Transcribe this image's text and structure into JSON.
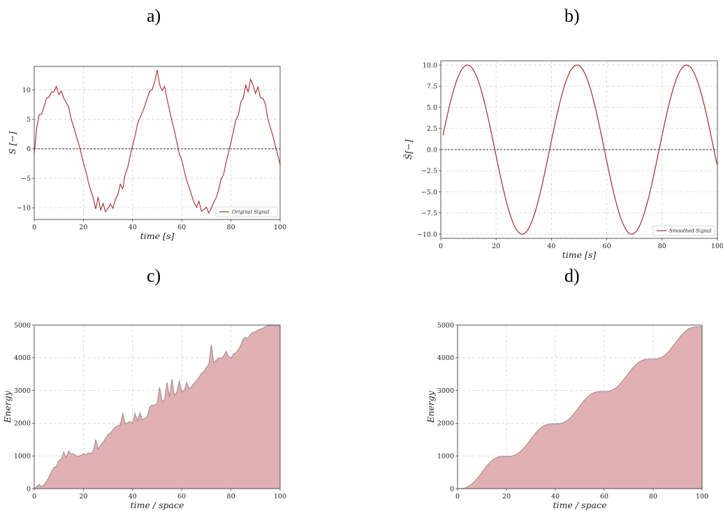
{
  "panel_labels": [
    "a)",
    "b)",
    "c)",
    "d)"
  ],
  "colors": {
    "line": "#a52a2a",
    "fill": "#e0b0b3",
    "fill_edge": "#9a8a8a",
    "grid": "#d4d4d4",
    "zero": "#333333"
  },
  "chart_data": [
    {
      "type": "line",
      "panel": "a)",
      "xlabel": "time [s]",
      "ylabel": "S [−]",
      "xlim": [
        0,
        100
      ],
      "ylim": [
        -12,
        14
      ],
      "xticks": [
        0,
        20,
        40,
        60,
        80,
        100
      ],
      "yticks": [
        -10,
        -5,
        0,
        5,
        10
      ],
      "ytick_labels": [
        "−10",
        "−5",
        "0",
        "5",
        "10"
      ],
      "legend": "top-right-lower",
      "legend_position": "lower right",
      "grid": true,
      "zero_line": true,
      "series": [
        {
          "name": "Original Signal",
          "x": [
            0,
            1,
            2,
            3,
            4,
            5,
            6,
            7,
            8,
            9,
            10,
            11,
            12,
            13,
            14,
            15,
            16,
            17,
            18,
            19,
            20,
            21,
            22,
            23,
            24,
            25,
            26,
            27,
            28,
            29,
            30,
            31,
            32,
            33,
            34,
            35,
            36,
            37,
            38,
            39,
            40,
            41,
            42,
            43,
            44,
            45,
            46,
            47,
            48,
            49,
            50,
            51,
            52,
            53,
            54,
            55,
            56,
            57,
            58,
            59,
            60,
            61,
            62,
            63,
            64,
            65,
            66,
            67,
            68,
            69,
            70,
            71,
            72,
            73,
            74,
            75,
            76,
            77,
            78,
            79,
            80,
            81,
            82,
            83,
            84,
            85,
            86,
            87,
            88,
            89,
            90,
            91,
            92,
            93,
            94,
            95,
            96,
            97,
            98,
            99,
            100
          ],
          "values": [
            -0.8,
            3.5,
            5.8,
            5.9,
            7.2,
            8.6,
            8.8,
            9.6,
            9.7,
            10.6,
            9.2,
            9.8,
            8.6,
            7.9,
            7.1,
            5.1,
            3.8,
            2.3,
            1.0,
            -0.6,
            -2.4,
            -3.8,
            -5.6,
            -7.1,
            -8.3,
            -10.2,
            -8.2,
            -10.4,
            -9.3,
            -10.7,
            -10.1,
            -9.4,
            -10.1,
            -8.6,
            -7.8,
            -6.0,
            -6.8,
            -4.3,
            -3.2,
            -1.2,
            0.6,
            2.2,
            4.2,
            5.3,
            6.2,
            7.3,
            8.7,
            9.8,
            10.1,
            11.4,
            13.4,
            10.9,
            9.9,
            10.6,
            8.5,
            6.6,
            4.8,
            3.1,
            1.1,
            -0.9,
            -1.9,
            -3.7,
            -5.4,
            -6.5,
            -7.9,
            -9.1,
            -9.9,
            -8.9,
            -10.6,
            -10.3,
            -9.9,
            -10.9,
            -10.1,
            -9.1,
            -8.3,
            -7.0,
            -5.1,
            -4.4,
            -2.3,
            -0.6,
            1.1,
            3.0,
            4.9,
            5.7,
            7.9,
            8.6,
            10.8,
            9.7,
            11.8,
            10.8,
            9.4,
            10.5,
            8.7,
            8.6,
            7.6,
            5.1,
            3.7,
            2.3,
            0.6,
            -1.0,
            -2.7
          ]
        }
      ]
    },
    {
      "type": "line",
      "panel": "b)",
      "xlabel": "time [s]",
      "ylabel": "S̄[−]",
      "xlim": [
        0,
        100
      ],
      "ylim": [
        -10.5,
        10.5
      ],
      "xticks": [
        0,
        20,
        40,
        60,
        80,
        100
      ],
      "yticks": [
        -10,
        -7.5,
        -5,
        -2.5,
        0,
        2.5,
        5,
        7.5,
        10
      ],
      "ytick_labels": [
        "−10.0",
        "−7.5",
        "−5.0",
        "−2.5",
        "0.0",
        "2.5",
        "5.0",
        "7.5",
        "10.0"
      ],
      "legend_position": "lower right",
      "grid": true,
      "zero_line": true,
      "series": [
        {
          "name": "Smoothed Signal",
          "function": "10*sin(2*pi*(t-0.8)/39.6)",
          "x_start": 0.8,
          "x_end": 100
        }
      ]
    },
    {
      "type": "area",
      "panel": "c)",
      "xlabel": "time / space",
      "ylabel": "Energy",
      "xlim": [
        0,
        100
      ],
      "ylim": [
        0,
        5000
      ],
      "xticks": [
        0,
        20,
        40,
        60,
        80,
        100
      ],
      "yticks": [
        0,
        1000,
        2000,
        3000,
        4000,
        5000
      ],
      "grid": true,
      "x": [
        0,
        1,
        2,
        3,
        4,
        5,
        6,
        7,
        8,
        9,
        10,
        11,
        12,
        13,
        14,
        15,
        16,
        17,
        18,
        19,
        20,
        21,
        22,
        23,
        24,
        25,
        26,
        27,
        28,
        29,
        30,
        31,
        32,
        33,
        34,
        35,
        36,
        37,
        38,
        39,
        40,
        41,
        42,
        43,
        44,
        45,
        46,
        47,
        48,
        49,
        50,
        51,
        52,
        53,
        54,
        55,
        56,
        57,
        58,
        59,
        60,
        61,
        62,
        63,
        64,
        65,
        66,
        67,
        68,
        69,
        70,
        71,
        72,
        73,
        74,
        75,
        76,
        77,
        78,
        79,
        80,
        81,
        82,
        83,
        84,
        85,
        86,
        87,
        88,
        89,
        90,
        91,
        92,
        93,
        94,
        95,
        96,
        97,
        98,
        99,
        100
      ],
      "values": [
        0,
        60,
        130,
        60,
        110,
        230,
        350,
        520,
        640,
        680,
        860,
        900,
        1120,
        950,
        1150,
        1060,
        1060,
        1010,
        990,
        1020,
        1060,
        1040,
        1090,
        1070,
        1150,
        1500,
        1210,
        1320,
        1420,
        1530,
        1650,
        1700,
        1800,
        1880,
        1920,
        1950,
        2300,
        1980,
        2020,
        2050,
        2000,
        2300,
        2080,
        2320,
        2100,
        2150,
        2200,
        2500,
        2550,
        2550,
        2620,
        3100,
        2650,
        2720,
        3250,
        2800,
        3350,
        2850,
        2950,
        3300,
        2950,
        3000,
        3250,
        3050,
        3120,
        3220,
        3300,
        3400,
        3520,
        3580,
        3700,
        3800,
        4400,
        3850,
        3920,
        4000,
        3980,
        4050,
        4200,
        4050,
        3980,
        4120,
        4150,
        4250,
        4380,
        4580,
        4620,
        4600,
        4720,
        4780,
        4800,
        4850,
        4880,
        4900,
        4950,
        4980,
        4990,
        5000,
        4960,
        4990,
        5000
      ]
    },
    {
      "type": "area",
      "panel": "d)",
      "xlabel": "time / space",
      "ylabel": "Energy",
      "xlim": [
        0,
        100
      ],
      "ylim": [
        0,
        5000
      ],
      "xticks": [
        0,
        20,
        40,
        60,
        80,
        100
      ],
      "yticks": [
        0,
        1000,
        2000,
        3000,
        4000,
        5000
      ],
      "grid": true,
      "function": "50*(t - 19.8/(2*pi)*sin(2*pi*t/19.8))",
      "x_start": 0,
      "x_end": 100
    }
  ]
}
